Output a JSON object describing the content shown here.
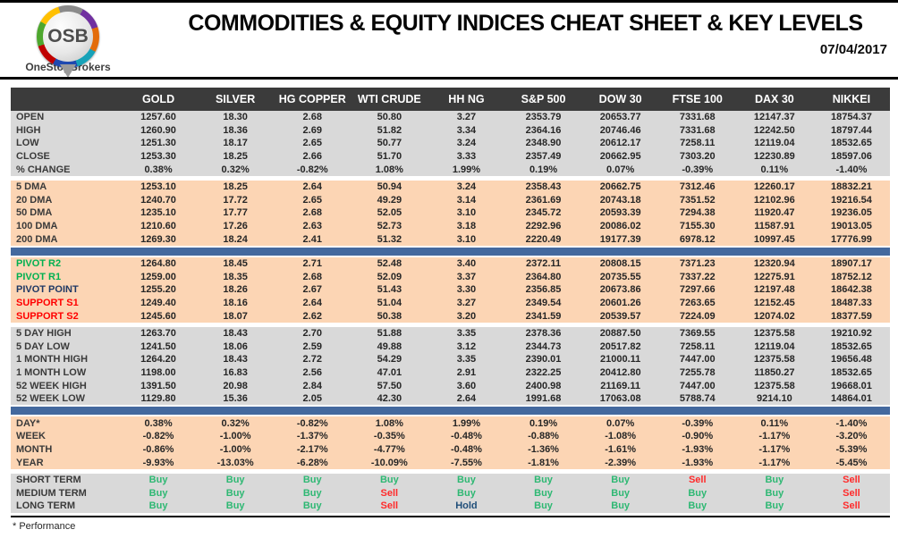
{
  "header": {
    "logo": {
      "osb": "OSB",
      "brand": "OneStopBrokers"
    },
    "title": "COMMODITIES & EQUITY INDICES CHEAT SHEET & KEY LEVELS",
    "date": "07/04/2017"
  },
  "colors": {
    "header_bar": "#3b3b3b",
    "band_gray": "#d9d9d9",
    "band_peach": "#fcd5b4",
    "separator_blue": "#44699e",
    "pivot_resistance_green": "#00b050",
    "pivot_point_navy": "#1f3864",
    "support_red": "#ff0000",
    "buy_green": "#2eb873",
    "sell_red": "#ff2a2a",
    "hold_navy": "#1f4e79"
  },
  "table": {
    "columns": [
      "GOLD",
      "SILVER",
      "HG COPPER",
      "WTI CRUDE",
      "HH NG",
      "S&P 500",
      "DOW 30",
      "FTSE 100",
      "DAX 30",
      "NIKKEI"
    ],
    "sections": [
      {
        "id": "ohlc",
        "band": "gray",
        "separator_before": "none",
        "rows": [
          {
            "label": "OPEN",
            "values": [
              "1257.60",
              "18.30",
              "2.68",
              "50.80",
              "3.27",
              "2353.79",
              "20653.77",
              "7331.68",
              "12147.37",
              "18754.37"
            ]
          },
          {
            "label": "HIGH",
            "values": [
              "1260.90",
              "18.36",
              "2.69",
              "51.82",
              "3.34",
              "2364.16",
              "20746.46",
              "7331.68",
              "12242.50",
              "18797.44"
            ]
          },
          {
            "label": "LOW",
            "values": [
              "1251.30",
              "18.17",
              "2.65",
              "50.77",
              "3.24",
              "2348.90",
              "20612.17",
              "7258.11",
              "12119.04",
              "18532.65"
            ]
          },
          {
            "label": "CLOSE",
            "values": [
              "1253.30",
              "18.25",
              "2.66",
              "51.70",
              "3.33",
              "2357.49",
              "20662.95",
              "7303.20",
              "12230.89",
              "18597.06"
            ]
          },
          {
            "label": "% CHANGE",
            "values": [
              "0.38%",
              "0.32%",
              "-0.82%",
              "1.08%",
              "1.99%",
              "0.19%",
              "0.07%",
              "-0.39%",
              "0.11%",
              "-1.40%"
            ]
          }
        ]
      },
      {
        "id": "moving-averages",
        "band": "peach",
        "separator_before": "gap",
        "rows": [
          {
            "label": "5 DMA",
            "values": [
              "1253.10",
              "18.25",
              "2.64",
              "50.94",
              "3.24",
              "2358.43",
              "20662.75",
              "7312.46",
              "12260.17",
              "18832.21"
            ]
          },
          {
            "label": "20 DMA",
            "values": [
              "1240.70",
              "17.72",
              "2.65",
              "49.29",
              "3.14",
              "2361.69",
              "20743.18",
              "7351.52",
              "12102.96",
              "19216.54"
            ]
          },
          {
            "label": "50 DMA",
            "values": [
              "1235.10",
              "17.77",
              "2.68",
              "52.05",
              "3.10",
              "2345.72",
              "20593.39",
              "7294.38",
              "11920.47",
              "19236.05"
            ]
          },
          {
            "label": "100 DMA",
            "values": [
              "1210.60",
              "17.26",
              "2.63",
              "52.73",
              "3.18",
              "2292.96",
              "20086.02",
              "7155.30",
              "11587.91",
              "19013.05"
            ]
          },
          {
            "label": "200 DMA",
            "values": [
              "1269.30",
              "18.24",
              "2.41",
              "51.32",
              "3.10",
              "2220.49",
              "19177.39",
              "6978.12",
              "10997.45",
              "17776.99"
            ]
          }
        ]
      },
      {
        "id": "pivots",
        "band": "peach",
        "separator_before": "bar",
        "rows": [
          {
            "label": "PIVOT R2",
            "label_color": "green",
            "values": [
              "1264.80",
              "18.45",
              "2.71",
              "52.48",
              "3.40",
              "2372.11",
              "20808.15",
              "7371.23",
              "12320.94",
              "18907.17"
            ]
          },
          {
            "label": "PIVOT R1",
            "label_color": "green",
            "values": [
              "1259.00",
              "18.35",
              "2.68",
              "52.09",
              "3.37",
              "2364.80",
              "20735.55",
              "7337.22",
              "12275.91",
              "18752.12"
            ]
          },
          {
            "label": "PIVOT POINT",
            "label_color": "navy",
            "values": [
              "1255.20",
              "18.26",
              "2.67",
              "51.43",
              "3.30",
              "2356.85",
              "20673.86",
              "7297.66",
              "12197.48",
              "18642.38"
            ]
          },
          {
            "label": "SUPPORT S1",
            "label_color": "red",
            "values": [
              "1249.40",
              "18.16",
              "2.64",
              "51.04",
              "3.27",
              "2349.54",
              "20601.26",
              "7263.65",
              "12152.45",
              "18487.33"
            ]
          },
          {
            "label": "SUPPORT S2",
            "label_color": "red",
            "values": [
              "1245.60",
              "18.07",
              "2.62",
              "50.38",
              "3.20",
              "2341.59",
              "20539.57",
              "7224.09",
              "12074.02",
              "18377.59"
            ]
          }
        ]
      },
      {
        "id": "ranges",
        "band": "gray",
        "separator_before": "gap",
        "rows": [
          {
            "label": "5 DAY HIGH",
            "values": [
              "1263.70",
              "18.43",
              "2.70",
              "51.88",
              "3.35",
              "2378.36",
              "20887.50",
              "7369.55",
              "12375.58",
              "19210.92"
            ]
          },
          {
            "label": "5 DAY LOW",
            "values": [
              "1241.50",
              "18.06",
              "2.59",
              "49.88",
              "3.12",
              "2344.73",
              "20517.82",
              "7258.11",
              "12119.04",
              "18532.65"
            ]
          },
          {
            "label": "1 MONTH HIGH",
            "values": [
              "1264.20",
              "18.43",
              "2.72",
              "54.29",
              "3.35",
              "2390.01",
              "21000.11",
              "7447.00",
              "12375.58",
              "19656.48"
            ]
          },
          {
            "label": "1 MONTH LOW",
            "values": [
              "1198.00",
              "16.83",
              "2.56",
              "47.01",
              "2.91",
              "2322.25",
              "20412.80",
              "7255.78",
              "11850.27",
              "18532.65"
            ]
          },
          {
            "label": "52 WEEK HIGH",
            "values": [
              "1391.50",
              "20.98",
              "2.84",
              "57.50",
              "3.60",
              "2400.98",
              "21169.11",
              "7447.00",
              "12375.58",
              "19668.01"
            ]
          },
          {
            "label": "52 WEEK LOW",
            "values": [
              "1129.80",
              "15.36",
              "2.05",
              "42.30",
              "2.64",
              "1991.68",
              "17063.08",
              "5788.74",
              "9214.10",
              "14864.01"
            ]
          }
        ]
      },
      {
        "id": "performance",
        "band": "peach",
        "separator_before": "bar",
        "rows": [
          {
            "label": "DAY*",
            "values": [
              "0.38%",
              "0.32%",
              "-0.82%",
              "1.08%",
              "1.99%",
              "0.19%",
              "0.07%",
              "-0.39%",
              "0.11%",
              "-1.40%"
            ]
          },
          {
            "label": "WEEK",
            "values": [
              "-0.82%",
              "-1.00%",
              "-1.37%",
              "-0.35%",
              "-0.48%",
              "-0.88%",
              "-1.08%",
              "-0.90%",
              "-1.17%",
              "-3.20%"
            ]
          },
          {
            "label": "MONTH",
            "values": [
              "-0.86%",
              "-1.00%",
              "-2.17%",
              "-4.77%",
              "-0.48%",
              "-1.36%",
              "-1.61%",
              "-1.93%",
              "-1.17%",
              "-5.39%"
            ]
          },
          {
            "label": "YEAR",
            "values": [
              "-9.93%",
              "-13.03%",
              "-6.28%",
              "-10.09%",
              "-7.55%",
              "-1.81%",
              "-2.39%",
              "-1.93%",
              "-1.17%",
              "-5.45%"
            ]
          }
        ]
      },
      {
        "id": "signals",
        "band": "gray",
        "separator_before": "gap",
        "signal_rows": true,
        "rows": [
          {
            "label": "SHORT TERM",
            "values": [
              "Buy",
              "Buy",
              "Buy",
              "Buy",
              "Buy",
              "Buy",
              "Buy",
              "Sell",
              "Buy",
              "Sell"
            ]
          },
          {
            "label": "MEDIUM TERM",
            "values": [
              "Buy",
              "Buy",
              "Buy",
              "Sell",
              "Buy",
              "Buy",
              "Buy",
              "Buy",
              "Buy",
              "Sell"
            ]
          },
          {
            "label": "LONG TERM",
            "values": [
              "Buy",
              "Buy",
              "Buy",
              "Sell",
              "Hold",
              "Buy",
              "Buy",
              "Buy",
              "Buy",
              "Sell"
            ]
          }
        ]
      }
    ]
  },
  "footer": {
    "note": "* Performance"
  }
}
